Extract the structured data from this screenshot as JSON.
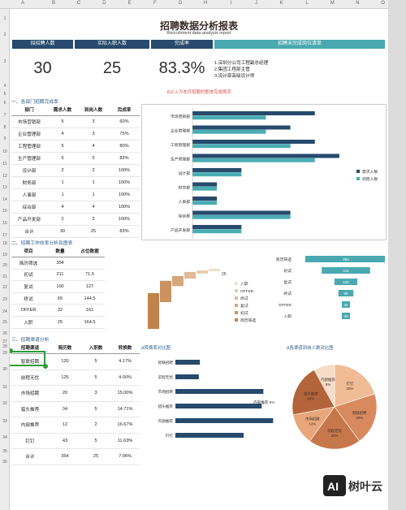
{
  "columns": [
    "A",
    "B",
    "C",
    "D",
    "E",
    "F",
    "G",
    "H",
    "I",
    "J",
    "K",
    "L",
    "M",
    "N",
    "O"
  ],
  "rows": [
    "1",
    "2",
    "3",
    "4",
    "5",
    "6",
    "7",
    "8",
    "9",
    "10",
    "11",
    "12",
    "13",
    "14",
    "15",
    "16",
    "17",
    "18",
    "19",
    "20",
    "21",
    "22",
    "23",
    "24",
    "25",
    "26",
    "27",
    "28",
    "29",
    "30",
    "31",
    "32",
    "33",
    "34",
    "35",
    "36"
  ],
  "report": {
    "title": "招聘数据分析报表",
    "subtitle": "Recruitment data analysis report"
  },
  "kpi": {
    "labels": [
      "拟招聘人数",
      "实际入职人数",
      "完成率",
      "招聘未完成岗位清单"
    ],
    "values": [
      "30",
      "25",
      "83.3%"
    ],
    "notes": [
      "1.深圳分公司工程副总经理",
      "2.集团工程部主管",
      "3.设计部高级设计师"
    ],
    "remark": "Δ以上为本月招聘的整体完成情况"
  },
  "section1": {
    "title": "一、各部门招聘完成率",
    "headers": [
      "部门",
      "需求人数",
      "到岗人数",
      "完成率"
    ],
    "rows": [
      [
        "市场营销部",
        "5",
        "3",
        "60%"
      ],
      [
        "企业管理部",
        "4",
        "3",
        "75%"
      ],
      [
        "工程管理部",
        "5",
        "4",
        "80%"
      ],
      [
        "生产管理部",
        "6",
        "5",
        "83%"
      ],
      [
        "设计部",
        "2",
        "2",
        "100%"
      ],
      [
        "财务部",
        "1",
        "1",
        "100%"
      ],
      [
        "人事部",
        "1",
        "1",
        "100%"
      ],
      [
        "综合部",
        "4",
        "4",
        "100%"
      ],
      [
        "产品开发部",
        "2",
        "2",
        "100%"
      ],
      [
        "合计",
        "30",
        "25",
        "83%"
      ]
    ]
  },
  "section2": {
    "title": "二、招聘工作效率分析及图表",
    "headers": [
      "项目",
      "数量",
      "占位数据"
    ],
    "rows": [
      [
        "简历筛选",
        "354",
        ""
      ],
      [
        "初试",
        "211",
        "71.5"
      ],
      [
        "复试",
        "100",
        "127"
      ],
      [
        "终试",
        "65",
        "144.5"
      ],
      [
        "OFFER",
        "32",
        "161"
      ],
      [
        "入职",
        "25",
        "164.5"
      ]
    ]
  },
  "section3": {
    "title": "三、招聘渠道分析",
    "headers": [
      "招聘渠道",
      "简历数",
      "入职数",
      "转换数"
    ],
    "rows": [
      [
        "智联招聘",
        "120",
        "5",
        "4.17%"
      ],
      [
        "前程无忧",
        "125",
        "5",
        "4.00%"
      ],
      [
        "市场招聘",
        "20",
        "3",
        "15.00%"
      ],
      [
        "猎头推荐",
        "34",
        "5",
        "14.71%"
      ],
      [
        "内部推荐",
        "12",
        "2",
        "16.67%"
      ],
      [
        "钉钉",
        "43",
        "5",
        "11.63%"
      ],
      [
        "合计",
        "354",
        "25",
        "7.06%"
      ]
    ]
  },
  "colors": {
    "dark": "#274a6d",
    "teal": "#4bacb3",
    "brown": "#b8743f",
    "kpi_teal": "#4aa9b0"
  },
  "chart_data": [
    {
      "type": "bar",
      "categories": [
        "市场营销部",
        "企业管理部",
        "工程管理部",
        "生产管理部",
        "设计部",
        "财务部",
        "人事部",
        "综合部",
        "产品开发部"
      ],
      "series": [
        {
          "name": "需求人数",
          "values": [
            5,
            4,
            5,
            6,
            2,
            1,
            1,
            4,
            2
          ]
        },
        {
          "name": "到岗人数",
          "values": [
            3,
            3,
            4,
            5,
            2,
            1,
            1,
            4,
            2
          ]
        }
      ],
      "legend": "right"
    },
    {
      "type": "bar",
      "stacked_waterfall": true,
      "categories": [
        "简历筛选",
        "初试",
        "复试",
        "终试",
        "OFFER",
        "入职"
      ],
      "values": [
        354,
        211,
        100,
        65,
        32,
        25
      ],
      "data_labels": [
        "25"
      ],
      "legend_items": [
        "入职",
        "OFFER",
        "终试",
        "复试",
        "初试",
        "简历筛选"
      ]
    },
    {
      "type": "bar",
      "funnel": true,
      "categories": [
        "简历筛选",
        "初试",
        "复试",
        "终试",
        "OFFER",
        "入职"
      ],
      "values": [
        354,
        211,
        100,
        65,
        32,
        25
      ]
    },
    {
      "type": "bar",
      "title": "Δ转换率对比图",
      "categories": [
        "智联招聘",
        "前程无忧",
        "市场招聘",
        "猎头推荐",
        "内部推荐",
        "钉钉"
      ],
      "values": [
        4.17,
        4.0,
        15.0,
        14.71,
        16.67,
        11.63
      ],
      "data_labels": [
        "内部推荐 8%"
      ]
    },
    {
      "type": "pie",
      "title": "Δ各渠道到岗人数对比图",
      "categories": [
        "智联招聘",
        "前程无忧",
        "市场招聘",
        "猎头推荐",
        "内部推荐",
        "钉钉"
      ],
      "values": [
        20,
        20,
        12,
        20,
        8,
        20
      ],
      "labels": [
        "智联招聘 20%",
        "前程无忧 20%",
        "市场招聘 12%",
        "猎头推荐 20%",
        "内部推荐 8%",
        "钉钉 20%"
      ]
    }
  ],
  "logo": {
    "text": "树叶云"
  }
}
